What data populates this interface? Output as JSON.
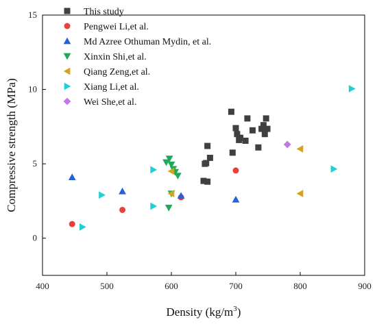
{
  "chart_data": {
    "type": "scatter",
    "xlabel": "Density (kg/m",
    "xlabel_superscript": "3",
    "xlabel_suffix": ")",
    "ylabel": "Compressive strength (MPa)",
    "xlim": [
      400,
      900
    ],
    "ylim": [
      -2.5,
      15
    ],
    "xticks": [
      400,
      500,
      600,
      700,
      800,
      900
    ],
    "yticks": [
      0,
      5,
      10,
      15
    ],
    "grid": false,
    "legend_position": "top-left",
    "series": [
      {
        "name": "This study",
        "marker": "square",
        "color": "#404040",
        "points": [
          [
            650,
            3.85
          ],
          [
            656,
            3.8
          ],
          [
            652,
            5.0
          ],
          [
            654,
            5.05
          ],
          [
            656,
            6.2
          ],
          [
            660,
            5.4
          ],
          [
            693,
            8.5
          ],
          [
            695,
            5.75
          ],
          [
            700,
            7.4
          ],
          [
            702,
            7.0
          ],
          [
            705,
            6.6
          ],
          [
            707,
            6.75
          ],
          [
            715,
            6.55
          ],
          [
            718,
            8.05
          ],
          [
            726,
            7.25
          ],
          [
            735,
            6.1
          ],
          [
            740,
            7.35
          ],
          [
            743,
            7.6
          ],
          [
            745,
            7.0
          ],
          [
            747,
            8.05
          ],
          [
            749,
            7.35
          ]
        ]
      },
      {
        "name": "Pengwei Li,et al.",
        "marker": "circle",
        "color": "#e8403a",
        "points": [
          [
            446,
            0.95
          ],
          [
            524,
            1.9
          ],
          [
            615,
            2.75
          ],
          [
            700,
            4.55
          ]
        ]
      },
      {
        "name": "Md Azree Othuman Mydin, et al.",
        "marker": "triangle-up",
        "color": "#2462d6",
        "points": [
          [
            446,
            4.1
          ],
          [
            524,
            3.15
          ],
          [
            615,
            2.85
          ],
          [
            700,
            2.6
          ]
        ]
      },
      {
        "name": "Xinxin Shi,et al.",
        "marker": "triangle-down",
        "color": "#1ea85a",
        "points": [
          [
            592,
            5.1
          ],
          [
            597,
            5.35
          ],
          [
            600,
            4.95
          ],
          [
            603,
            4.65
          ],
          [
            606,
            4.45
          ],
          [
            610,
            4.2
          ],
          [
            596,
            2.05
          ],
          [
            600,
            3.0
          ]
        ]
      },
      {
        "name": "Qiang Zeng,et al.",
        "marker": "triangle-left",
        "color": "#d9a21c",
        "points": [
          [
            600,
            4.5
          ],
          [
            600,
            3.0
          ],
          [
            800,
            6.0
          ],
          [
            800,
            3.0
          ]
        ]
      },
      {
        "name": "Xiang Li,et al.",
        "marker": "triangle-right",
        "color": "#1fcfd2",
        "points": [
          [
            462,
            0.75
          ],
          [
            492,
            2.9
          ],
          [
            572,
            4.6
          ],
          [
            572,
            2.15
          ],
          [
            852,
            4.65
          ],
          [
            880,
            10.05
          ]
        ]
      },
      {
        "name": "Wei She,et al.",
        "marker": "diamond",
        "color": "#c573e6",
        "points": [
          [
            780,
            6.3
          ]
        ]
      }
    ]
  }
}
